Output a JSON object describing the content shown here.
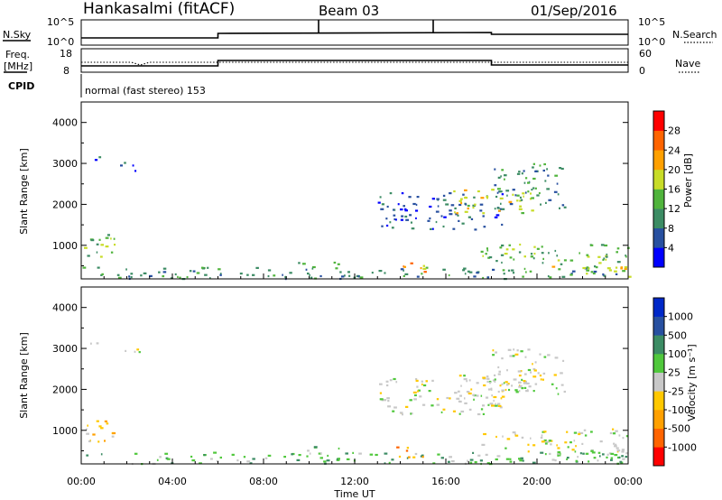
{
  "header": {
    "radar": "Hankasalmi (fitACF)",
    "beam": "Beam 03",
    "date": "01/Sep/2016"
  },
  "top_panels": {
    "nsky_label": "N.Sky",
    "nsearch_label": "N.Search",
    "nsky_ticks": [
      "10^5",
      "10^0"
    ],
    "nsearch_ticks": [
      "10^5",
      "10^0"
    ],
    "freq_label": "Freq.",
    "freq_unit": "[MHz]",
    "freq_ticks": [
      "18",
      "8"
    ],
    "nave_label": "Nave",
    "nave_ticks": [
      "60",
      "0"
    ],
    "cpid_label": "CPID",
    "cpid_text": "normal (fast stereo) 153"
  },
  "x_axis": {
    "label": "Time UT",
    "ticks": [
      "00:00",
      "04:00",
      "08:00",
      "12:00",
      "16:00",
      "20:00",
      "00:00"
    ]
  },
  "chart_data": [
    {
      "type": "heatmap",
      "name": "power",
      "ylabel": "Slant Range [km]",
      "yticks": [
        "1000",
        "2000",
        "3000",
        "4000"
      ],
      "ylim": [
        180,
        4500
      ],
      "xlim_hours": [
        0,
        24
      ],
      "colorbar": {
        "label": "Power [dB]",
        "ticks": [
          "4",
          "8",
          "12",
          "16",
          "20",
          "24",
          "28"
        ],
        "colors": [
          "#0000ff",
          "#2850a0",
          "#3c8c64",
          "#50b43c",
          "#c8dc28",
          "#ffa000",
          "#ff6400",
          "#ff0000"
        ]
      },
      "regions": [
        {
          "t": [
            0.1,
            1.6
          ],
          "r": [
            720,
            1350
          ],
          "level": 3
        },
        {
          "t": [
            0.2,
            1.2
          ],
          "r": [
            3050,
            3180
          ],
          "level": 1
        },
        {
          "t": [
            1.6,
            2.7
          ],
          "r": [
            2830,
            3050
          ],
          "level": 1
        },
        {
          "t": [
            0,
            24
          ],
          "r": [
            200,
            480
          ],
          "level": 2
        },
        {
          "t": [
            9.5,
            11.5
          ],
          "r": [
            450,
            620
          ],
          "level": 2
        },
        {
          "t": [
            13.8,
            15.2
          ],
          "r": [
            350,
            650
          ],
          "level": 5
        },
        {
          "t": [
            13,
            18.5
          ],
          "r": [
            1400,
            2300
          ],
          "level": 1
        },
        {
          "t": [
            16.2,
            20
          ],
          "r": [
            1800,
            2400
          ],
          "level": 4
        },
        {
          "t": [
            18,
            21.2
          ],
          "r": [
            1900,
            3050
          ],
          "level": 2
        },
        {
          "t": [
            17.5,
            24
          ],
          "r": [
            500,
            1050
          ],
          "level": 3
        },
        {
          "t": [
            20.5,
            24
          ],
          "r": [
            250,
            550
          ],
          "level": 4
        }
      ]
    },
    {
      "type": "heatmap",
      "name": "velocity",
      "ylabel": "Slant Range [km]",
      "yticks": [
        "1000",
        "2000",
        "3000",
        "4000"
      ],
      "ylim": [
        180,
        4500
      ],
      "xlim_hours": [
        0,
        24
      ],
      "colorbar": {
        "label": "Velocity [m s⁻¹]",
        "ticks": [
          "1000",
          "500",
          "100",
          "25",
          "-25",
          "-100",
          "-500",
          "-1000"
        ],
        "colors": [
          "#0028c8",
          "#2850a0",
          "#3c8c64",
          "#50c83c",
          "#c8c8c8",
          "#ffc800",
          "#ffa000",
          "#ff6400",
          "#ff0000"
        ]
      },
      "regions": [
        {
          "t": [
            0.1,
            1.6
          ],
          "r": [
            720,
            1350
          ],
          "level": 5
        },
        {
          "t": [
            0.2,
            1.2
          ],
          "r": [
            3050,
            3180
          ],
          "level": 4
        },
        {
          "t": [
            1.6,
            2.7
          ],
          "r": [
            2830,
            3050
          ],
          "level": 4
        },
        {
          "t": [
            0,
            24
          ],
          "r": [
            200,
            480
          ],
          "level": 3
        },
        {
          "t": [
            9.5,
            11.5
          ],
          "r": [
            450,
            620
          ],
          "level": 3
        },
        {
          "t": [
            13.8,
            15.2
          ],
          "r": [
            350,
            650
          ],
          "level": 6
        },
        {
          "t": [
            13,
            18.5
          ],
          "r": [
            1400,
            2300
          ],
          "level": 4
        },
        {
          "t": [
            16.2,
            20
          ],
          "r": [
            1800,
            2400
          ],
          "level": 4
        },
        {
          "t": [
            18,
            21.2
          ],
          "r": [
            1900,
            3050
          ],
          "level": 4
        },
        {
          "t": [
            17.5,
            24
          ],
          "r": [
            500,
            1050
          ],
          "level": 4
        },
        {
          "t": [
            20.5,
            24
          ],
          "r": [
            250,
            550
          ],
          "level": 3
        }
      ]
    }
  ]
}
